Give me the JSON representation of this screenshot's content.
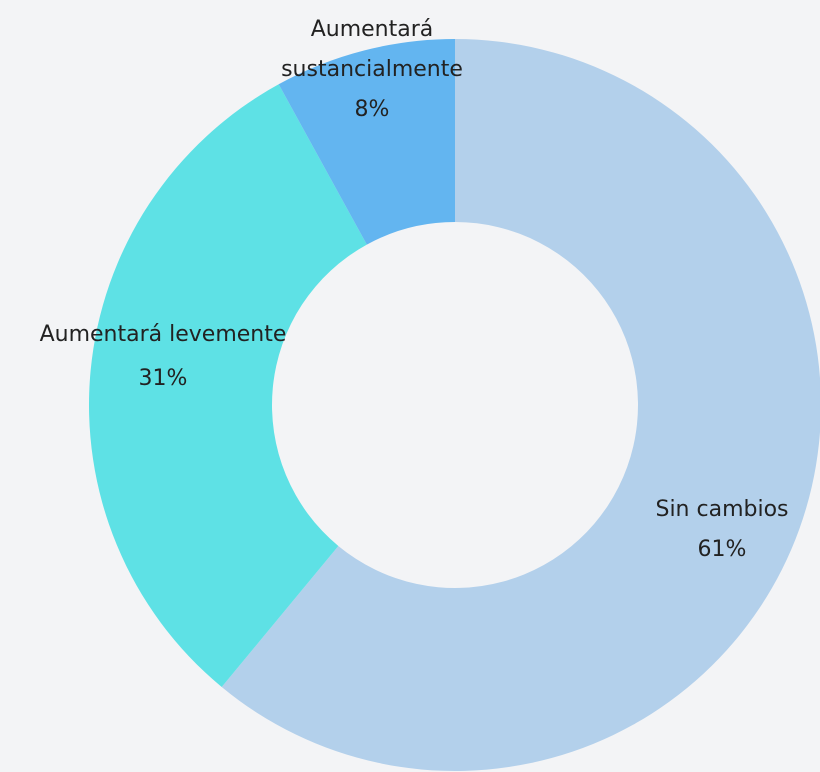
{
  "chart_data": {
    "type": "donut",
    "categories": [
      "Sin cambios",
      "Aumentará levemente",
      "Aumentará sustancialmente"
    ],
    "values": [
      61,
      31,
      8
    ],
    "value_labels": [
      "61%",
      "31%",
      "8%"
    ],
    "colors": [
      "#b3d0eb",
      "#5ee1e5",
      "#63b5f0"
    ]
  }
}
